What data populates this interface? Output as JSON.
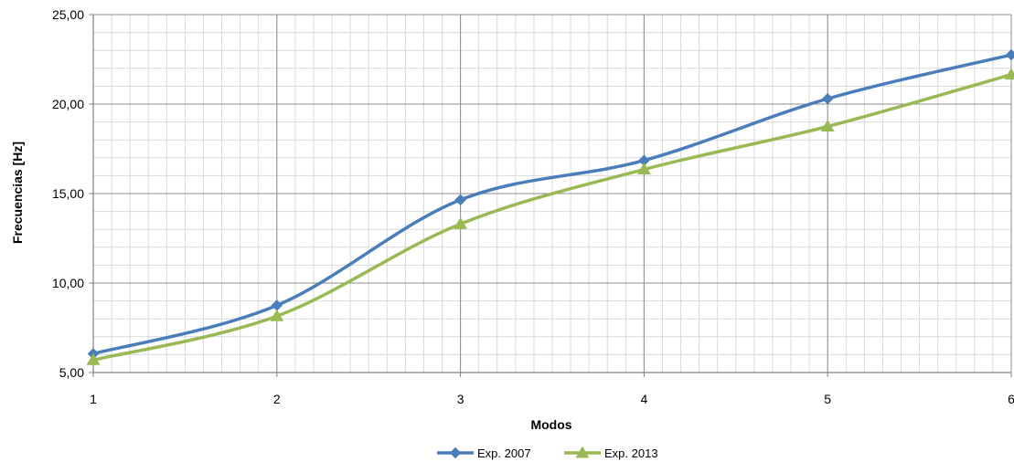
{
  "chart_data": {
    "type": "line",
    "xlabel": "Modos",
    "ylabel": "Frecuencias [Hz]",
    "x": [
      1,
      2,
      3,
      4,
      5,
      6
    ],
    "x_tick_labels": [
      "1",
      "2",
      "3",
      "4",
      "5",
      "6"
    ],
    "ylim": [
      5,
      25
    ],
    "y_tick_labels": [
      "5,00",
      "10,00",
      "15,00",
      "20,00",
      "25,00"
    ],
    "y_ticks": [
      5,
      10,
      15,
      20,
      25
    ],
    "grid": true,
    "legend_position": "bottom",
    "smoothed": true,
    "series": [
      {
        "name": "Exp. 2007",
        "marker": "diamond",
        "color": "#4a7ebb",
        "values": [
          6.05,
          8.75,
          14.65,
          16.85,
          20.3,
          22.75
        ]
      },
      {
        "name": "Exp. 2013",
        "marker": "triangle",
        "color": "#98b954",
        "values": [
          5.7,
          8.15,
          13.3,
          16.35,
          18.75,
          21.65
        ]
      }
    ]
  }
}
